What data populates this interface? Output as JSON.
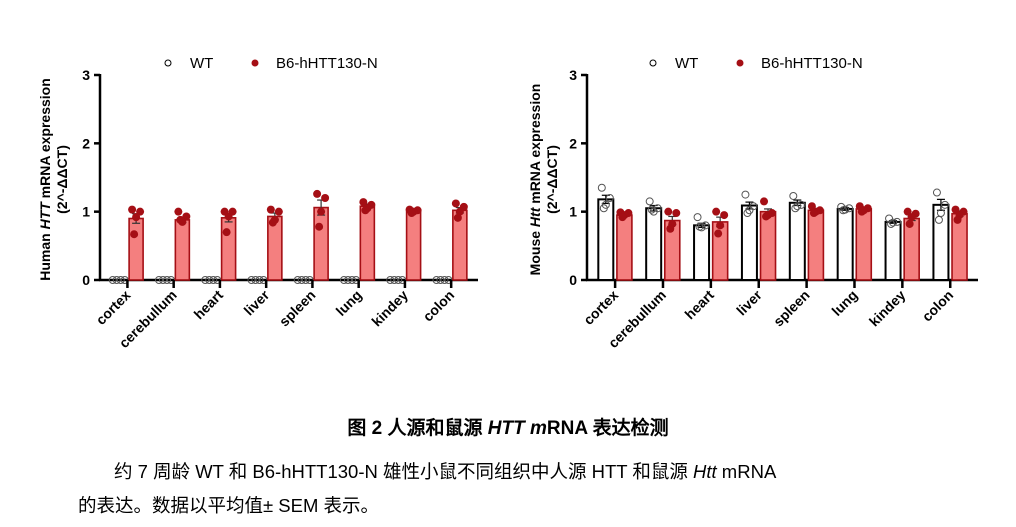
{
  "legend": {
    "wt_label": "WT",
    "tg_label": "B6-hHTT130-N"
  },
  "colors": {
    "wt_fill": "#ffffff",
    "wt_stroke": "#000000",
    "tg_fill": "#f47f7f",
    "tg_stroke": "#a50f15",
    "tg_dot": "#a50f15"
  },
  "chart_data": [
    {
      "type": "bar",
      "title": "",
      "xlabel": "",
      "ylabel_prefix": "Human ",
      "ylabel_italic": "HTT",
      "ylabel_suffix": " mRNA expression",
      "ylabel_line2": "(2^-ΔΔCT)",
      "ylim": [
        0,
        3
      ],
      "yticks": [
        0,
        1,
        2,
        3
      ],
      "categories": [
        "cortex",
        "cerebullum",
        "heart",
        "liver",
        "spleen",
        "lung",
        "kindey",
        "colon"
      ],
      "series": [
        {
          "name": "WT",
          "values": [
            0,
            0,
            0,
            0,
            0,
            0,
            0,
            0
          ],
          "sem": [
            0,
            0,
            0,
            0,
            0,
            0,
            0,
            0
          ],
          "points": [
            [
              0,
              0,
              0,
              0
            ],
            [
              0,
              0,
              0,
              0
            ],
            [
              0,
              0,
              0,
              0
            ],
            [
              0,
              0,
              0,
              0
            ],
            [
              0,
              0,
              0,
              0
            ],
            [
              0,
              0,
              0,
              0
            ],
            [
              0,
              0,
              0,
              0
            ],
            [
              0,
              0,
              0,
              0
            ]
          ]
        },
        {
          "name": "B6-hHTT130-N",
          "values": [
            0.9,
            0.88,
            0.91,
            0.93,
            1.06,
            1.08,
            1.02,
            1.02
          ],
          "sem": [
            0.07,
            0.04,
            0.06,
            0.05,
            0.11,
            0.03,
            0.02,
            0.04
          ],
          "points": [
            [
              1.03,
              1.0,
              0.92,
              0.67
            ],
            [
              1.0,
              0.93,
              0.85,
              0.88
            ],
            [
              1.0,
              1.0,
              0.93,
              0.7
            ],
            [
              1.03,
              1.0,
              0.88,
              0.84
            ],
            [
              1.26,
              1.2,
              1.0,
              0.78
            ],
            [
              1.14,
              1.1,
              1.05,
              1.02
            ],
            [
              1.03,
              1.02,
              1.0,
              0.98
            ],
            [
              1.12,
              1.07,
              1.0,
              0.91
            ]
          ]
        }
      ]
    },
    {
      "type": "bar",
      "title": "",
      "xlabel": "",
      "ylabel_prefix": "Mouse ",
      "ylabel_italic": "Htt",
      "ylabel_suffix": " mRNA expression",
      "ylabel_line2": "(2^-ΔΔCT)",
      "ylim": [
        0,
        3
      ],
      "yticks": [
        0,
        1,
        2,
        3
      ],
      "categories": [
        "cortex",
        "cerebullum",
        "heart",
        "liver",
        "spleen",
        "lung",
        "kindey",
        "colon"
      ],
      "series": [
        {
          "name": "WT",
          "values": [
            1.18,
            1.05,
            0.8,
            1.09,
            1.13,
            1.04,
            0.85,
            1.1
          ],
          "sem": [
            0.06,
            0.04,
            0.03,
            0.05,
            0.04,
            0.02,
            0.02,
            0.08
          ],
          "points": [
            [
              1.35,
              1.2,
              1.1,
              1.05
            ],
            [
              1.15,
              1.05,
              1.0,
              1.03
            ],
            [
              0.92,
              0.8,
              0.77,
              0.78
            ],
            [
              1.25,
              1.08,
              1.02,
              0.98
            ],
            [
              1.23,
              1.1,
              1.08,
              1.05
            ],
            [
              1.07,
              1.05,
              1.03,
              1.02
            ],
            [
              0.9,
              0.85,
              0.84,
              0.82
            ],
            [
              1.28,
              1.1,
              0.98,
              0.88
            ]
          ]
        },
        {
          "name": "B6-hHTT130-N",
          "values": [
            0.95,
            0.87,
            0.85,
            1.0,
            1.02,
            1.04,
            0.9,
            0.97
          ],
          "sem": [
            0.02,
            0.06,
            0.07,
            0.04,
            0.02,
            0.02,
            0.03,
            0.04
          ],
          "points": [
            [
              0.99,
              0.98,
              0.95,
              0.92
            ],
            [
              1.0,
              0.98,
              0.82,
              0.75
            ],
            [
              1.0,
              0.95,
              0.8,
              0.68
            ],
            [
              1.15,
              0.98,
              0.95,
              0.93
            ],
            [
              1.08,
              1.02,
              1.0,
              0.98
            ],
            [
              1.08,
              1.05,
              1.02,
              1.0
            ],
            [
              1.0,
              0.97,
              0.92,
              0.82
            ],
            [
              1.03,
              1.0,
              0.95,
              0.88
            ]
          ]
        }
      ]
    }
  ],
  "caption": {
    "title_prefix": "图 2 人源和鼠源 ",
    "title_italic_1": "HTT",
    "title_space": " ",
    "title_italic_2": "m",
    "title_suffix": "RNA 表达检测",
    "body_part1": "约 7 周龄 WT 和 B6-hHTT130-N 雄性小鼠不同组织中人源 HTT 和鼠源 ",
    "body_italic": "Htt",
    "body_part2": " mRNA",
    "body_line2": "的表达。数据以平均值± SEM 表示。"
  }
}
